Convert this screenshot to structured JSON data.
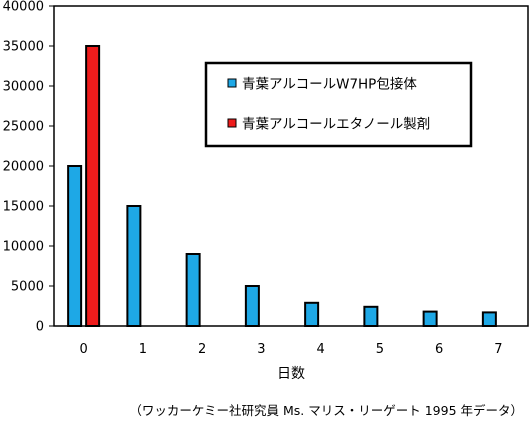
{
  "chart_data": {
    "type": "bar",
    "categories": [
      "0",
      "1",
      "2",
      "3",
      "4",
      "5",
      "6",
      "7"
    ],
    "series": [
      {
        "name": "青葉アルコールW7HP包接体",
        "color": "#1ea8e6",
        "values": [
          20000,
          15000,
          9000,
          5000,
          2900,
          2400,
          1800,
          1700
        ]
      },
      {
        "name": "青葉アルコールエタノール製剤",
        "color": "#ee1c1c",
        "values": [
          35000,
          null,
          null,
          null,
          null,
          null,
          null,
          null
        ]
      }
    ],
    "xlabel": "日数",
    "ylabel": "",
    "ylim": [
      0,
      40000
    ],
    "yticks": [
      0,
      5000,
      10000,
      15000,
      20000,
      25000,
      30000,
      35000,
      40000
    ],
    "grid": false,
    "legend_position": "top-right"
  },
  "caption": "（ワッカーケミー社研究員 Ms. マリス・リーゲート 1995 年データ）"
}
